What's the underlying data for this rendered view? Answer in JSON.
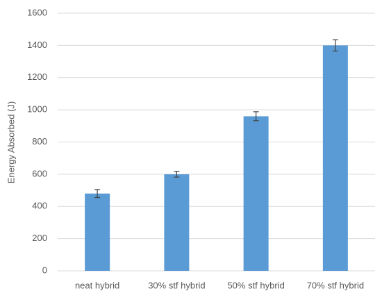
{
  "chart_data": {
    "type": "bar",
    "ylabel": "Energy Absorbed (J)",
    "categories": [
      "neat hybrid",
      "30% stf hybrid",
      "50% stf hybrid",
      "70% stf hybrid"
    ],
    "values": [
      480,
      600,
      960,
      1400
    ],
    "errors": [
      25,
      18,
      28,
      35
    ],
    "color": "#5b9bd5",
    "ylim": [
      0,
      1600
    ],
    "yticks": [
      0,
      200,
      400,
      600,
      800,
      1000,
      1200,
      1400,
      1600
    ],
    "grid": true
  }
}
